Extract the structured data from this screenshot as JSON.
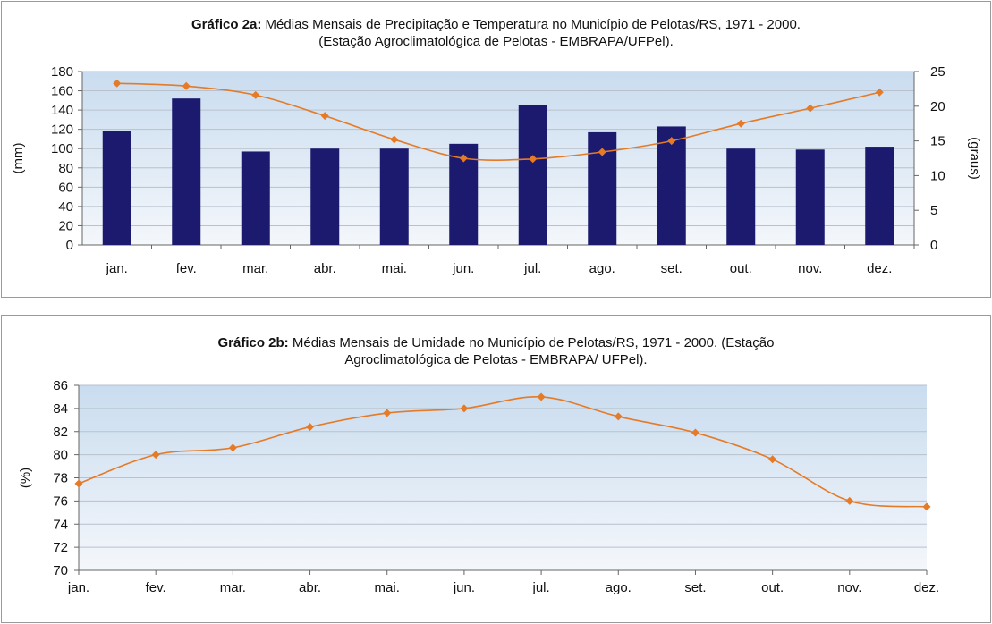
{
  "colors": {
    "bar": "#1b1a6e",
    "line": "#e57a27",
    "plot_top": "#c9dcef",
    "plot_bottom": "#f4f7fb",
    "grid": "#b8c1cc"
  },
  "chart_a": {
    "title_bold": "Gráfico 2a:",
    "title_rest": " Médias Mensais de Precipitação e Temperatura no Município de Pelotas/RS, 1971 - 2000.",
    "title_line2": "(Estação Agroclimatológica de Pelotas - EMBRAPA/UFPel).",
    "ylabel_left": "(mm)",
    "ylabel_right": "(graus)"
  },
  "chart_b": {
    "title_bold": "Gráfico 2b:",
    "title_rest": " Médias Mensais de Umidade no Município de Pelotas/RS, 1971 - 2000. (Estação",
    "title_line2": "Agroclimatológica de Pelotas - EMBRAPA/ UFPel).",
    "ylabel": "(%)"
  },
  "chart_data": [
    {
      "type": "bar",
      "categories": [
        "jan.",
        "fev.",
        "mar.",
        "abr.",
        "mai.",
        "jun.",
        "jul.",
        "ago.",
        "set.",
        "out.",
        "nov.",
        "dez."
      ],
      "series": [
        {
          "axis": "left",
          "type": "bar",
          "values": [
            118,
            152,
            97,
            100,
            100,
            105,
            145,
            117,
            123,
            100,
            99,
            102
          ]
        },
        {
          "axis": "right",
          "type": "line",
          "values": [
            23.3,
            22.9,
            21.6,
            18.6,
            15.2,
            12.5,
            12.4,
            13.4,
            15.0,
            17.5,
            19.7,
            22.0
          ]
        }
      ],
      "ylim_left": [
        0,
        180
      ],
      "yticks_left": [
        0,
        20,
        40,
        60,
        80,
        100,
        120,
        140,
        160,
        180
      ],
      "ylim_right": [
        0,
        25
      ],
      "yticks_right": [
        0,
        5,
        10,
        15,
        20,
        25
      ],
      "grid": true
    },
    {
      "type": "line",
      "categories": [
        "jan.",
        "fev.",
        "mar.",
        "abr.",
        "mai.",
        "jun.",
        "jul.",
        "ago.",
        "set.",
        "out.",
        "nov.",
        "dez."
      ],
      "series": [
        {
          "values": [
            77.5,
            80.0,
            80.6,
            82.4,
            83.6,
            84.0,
            85.0,
            83.3,
            81.9,
            79.6,
            76.0,
            75.5
          ]
        }
      ],
      "ylim": [
        70,
        86
      ],
      "yticks": [
        70,
        72,
        74,
        76,
        78,
        80,
        82,
        84,
        86
      ],
      "grid": true
    }
  ]
}
